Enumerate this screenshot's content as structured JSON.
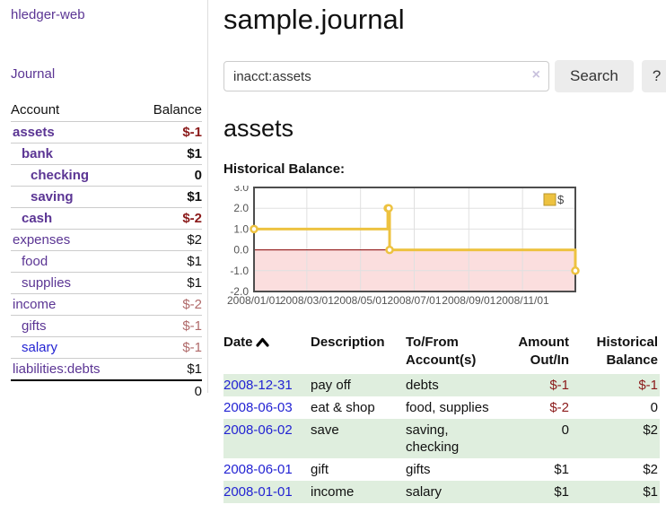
{
  "sidebar": {
    "app_title": "hledger-web",
    "journal_link": "Journal",
    "accounts": {
      "account_header": "Account",
      "balance_header": "Balance",
      "rows": [
        {
          "name": "assets",
          "balance": "$-1",
          "depth": 1,
          "bold": true
        },
        {
          "name": "bank",
          "balance": "$1",
          "depth": 2,
          "bold": true
        },
        {
          "name": "checking",
          "balance": "0",
          "depth": 3,
          "bold": true
        },
        {
          "name": "saving",
          "balance": "$1",
          "depth": 3,
          "bold": true
        },
        {
          "name": "cash",
          "balance": "$-2",
          "depth": 2,
          "bold": true
        },
        {
          "name": "expenses",
          "balance": "$2",
          "depth": 1,
          "bold": false
        },
        {
          "name": "food",
          "balance": "$1",
          "depth": 2,
          "bold": false
        },
        {
          "name": "supplies",
          "balance": "$1",
          "depth": 2,
          "bold": false
        },
        {
          "name": "income",
          "balance": "$-2",
          "depth": 1,
          "bold": false
        },
        {
          "name": "gifts",
          "balance": "$-1",
          "depth": 2,
          "bold": false
        },
        {
          "name": "salary",
          "balance": "$-1",
          "depth": 2,
          "bold": false,
          "blue": true
        },
        {
          "name": "liabilities:debts",
          "balance": "$1",
          "depth": 1,
          "bold": false
        }
      ],
      "total": "0"
    }
  },
  "header": {
    "title": "sample.journal",
    "search": {
      "value": "inacct:assets",
      "clear_icon": "×",
      "search_button": "Search",
      "help_button": "?"
    }
  },
  "main": {
    "account_heading": "assets",
    "chart_label": "Historical Balance:"
  },
  "chart_data": {
    "type": "line",
    "step": true,
    "title": "Historical Balance",
    "legend": "$",
    "legend_position": "top-right",
    "grid": true,
    "ylim": [
      -2,
      3
    ],
    "yticks": [
      3.0,
      2.0,
      1.0,
      0.0,
      -1.0,
      -2.0
    ],
    "xrange": [
      "2008-01-01",
      "2008-12-31"
    ],
    "xticks": [
      {
        "date": "2008-01-01",
        "label": "2008/01/01"
      },
      {
        "date": "2008-03-01",
        "label": "2008/03/01"
      },
      {
        "date": "2008-05-01",
        "label": "2008/05/01"
      },
      {
        "date": "2008-07-01",
        "label": "2008/07/01"
      },
      {
        "date": "2008-09-01",
        "label": "2008/09/01"
      },
      {
        "date": "2008-11-01",
        "label": "2008/11/01"
      }
    ],
    "series": [
      {
        "name": "$",
        "color": "#edc240",
        "points": [
          [
            "2008-01-01",
            1
          ],
          [
            "2008-06-01",
            2
          ],
          [
            "2008-06-02",
            2
          ],
          [
            "2008-06-03",
            0
          ],
          [
            "2008-12-31",
            -1
          ]
        ]
      }
    ],
    "negative_region_color": "#fbdede",
    "zero_line_color": "#8b0000",
    "grid_color": "#e0e0e0",
    "border_color": "#4d4d4d"
  },
  "transactions": {
    "headers": {
      "date": "Date",
      "description": "Description",
      "accounts_l1": "To/From",
      "accounts_l2": "Account(s)",
      "amount_l1": "Amount",
      "amount_l2": "Out/In",
      "balance_l1": "Historical",
      "balance_l2": "Balance"
    },
    "rows": [
      {
        "date": "2008-12-31",
        "description": "pay off",
        "accounts": "debts",
        "amount": "$-1",
        "balance": "$-1"
      },
      {
        "date": "2008-06-03",
        "description": "eat & shop",
        "accounts": "food, supplies",
        "amount": "$-2",
        "balance": "0"
      },
      {
        "date": "2008-06-02",
        "description": "save",
        "accounts": "saving, checking",
        "amount": "0",
        "balance": "$2"
      },
      {
        "date": "2008-06-01",
        "description": "gift",
        "accounts": "gifts",
        "amount": "$1",
        "balance": "$2"
      },
      {
        "date": "2008-01-01",
        "description": "income",
        "accounts": "salary",
        "amount": "$1",
        "balance": "$1"
      }
    ]
  }
}
